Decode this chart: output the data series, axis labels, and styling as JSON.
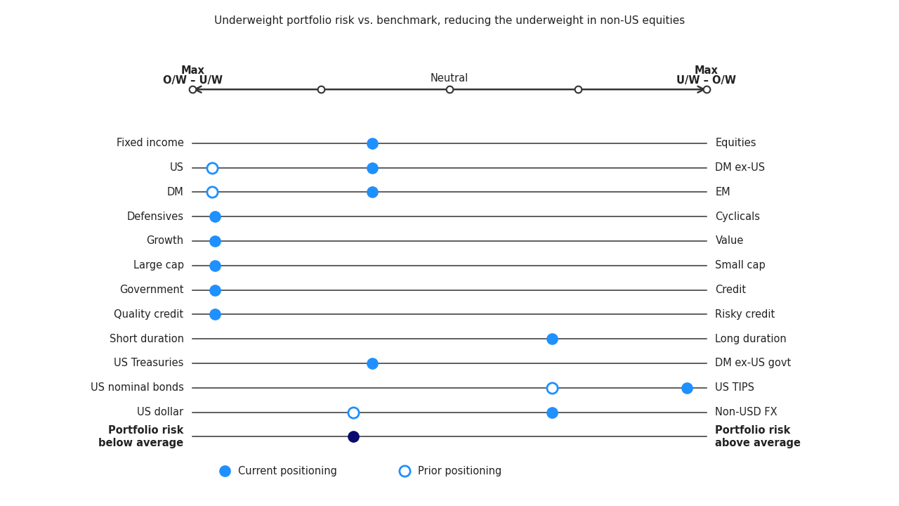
{
  "subtitle": "Underweight portfolio risk vs. benchmark, reducing the underweight in non-US equities",
  "rows": [
    {
      "left": "Fixed income",
      "right": "Equities",
      "current": 2.8,
      "prior": null,
      "bold": false,
      "dark": false
    },
    {
      "left": "US",
      "right": "DM ex-US",
      "current": 2.8,
      "prior": 0.3,
      "bold": false,
      "dark": false
    },
    {
      "left": "DM",
      "right": "EM",
      "current": 2.8,
      "prior": 0.3,
      "bold": false,
      "dark": false
    },
    {
      "left": "Defensives",
      "right": "Cyclicals",
      "current": 0.35,
      "prior": null,
      "bold": false,
      "dark": false
    },
    {
      "left": "Growth",
      "right": "Value",
      "current": 0.35,
      "prior": null,
      "bold": false,
      "dark": false
    },
    {
      "left": "Large cap",
      "right": "Small cap",
      "current": 0.35,
      "prior": null,
      "bold": false,
      "dark": false
    },
    {
      "left": "Government",
      "right": "Credit",
      "current": 0.35,
      "prior": null,
      "bold": false,
      "dark": false
    },
    {
      "left": "Quality credit",
      "right": "Risky credit",
      "current": 0.35,
      "prior": null,
      "bold": false,
      "dark": false
    },
    {
      "left": "Short duration",
      "right": "Long duration",
      "current": 5.6,
      "prior": null,
      "bold": false,
      "dark": false
    },
    {
      "left": "US Treasuries",
      "right": "DM ex-US govt",
      "current": 2.8,
      "prior": null,
      "bold": false,
      "dark": false
    },
    {
      "left": "US nominal bonds",
      "right": "US TIPS",
      "current": 7.7,
      "prior": 5.6,
      "bold": false,
      "dark": false
    },
    {
      "left": "US dollar",
      "right": "Non-USD FX",
      "current": 5.6,
      "prior": 2.5,
      "bold": false,
      "dark": false
    },
    {
      "left": "Portfolio risk\nbelow average",
      "right": "Portfolio risk\nabove average",
      "current": 2.5,
      "prior": null,
      "bold": true,
      "dark": true
    }
  ],
  "current_color": "#1E90FF",
  "current_color_dark": "#0a0a6e",
  "prior_edge_color": "#1E90FF",
  "line_color": "#333333",
  "bg_color": "#ffffff",
  "text_color": "#222222"
}
